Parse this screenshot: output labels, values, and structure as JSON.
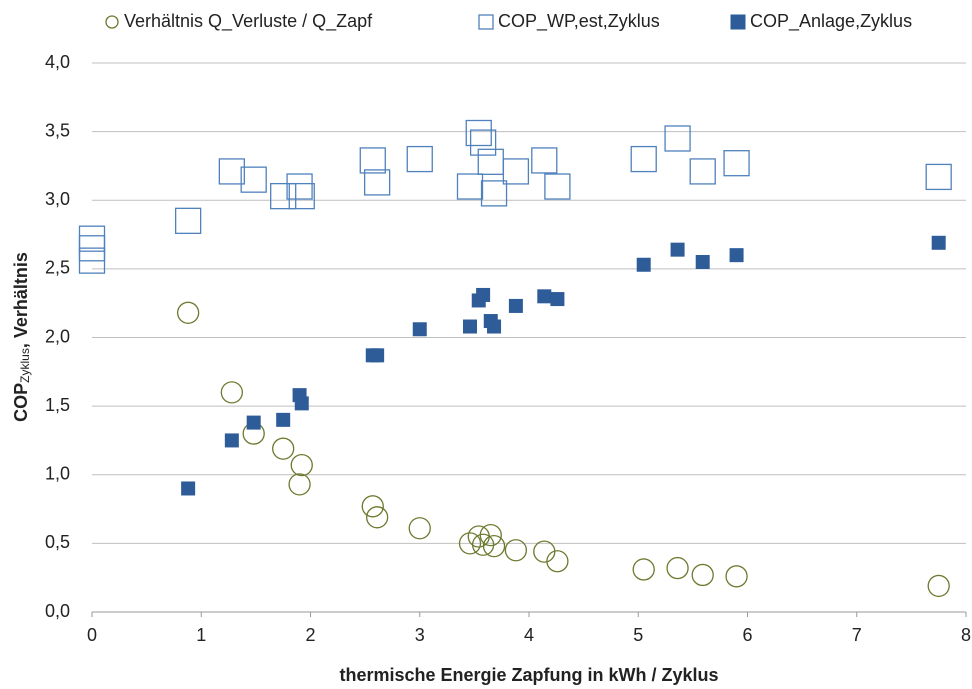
{
  "chart_data": {
    "type": "scatter",
    "xlabel": "thermische Energie Zapfung in kWh / Zyklus",
    "ylabel": [
      "COP",
      "Zyklus",
      ", Verhältnis"
    ],
    "xlim": [
      0,
      8
    ],
    "xticks": [
      0,
      1,
      2,
      3,
      4,
      5,
      6,
      7,
      8
    ],
    "ylim": [
      0,
      4
    ],
    "yticks": [
      {
        "value": 0,
        "label": "0,0"
      },
      {
        "value": 0.5,
        "label": "0,5"
      },
      {
        "value": 1,
        "label": "1,0"
      },
      {
        "value": 1.5,
        "label": "1,5"
      },
      {
        "value": 2,
        "label": "2,0"
      },
      {
        "value": 2.5,
        "label": "2,5"
      },
      {
        "value": 3,
        "label": "3,0"
      },
      {
        "value": 3.5,
        "label": "3,5"
      },
      {
        "value": 4,
        "label": "4,0"
      }
    ],
    "grid": true,
    "legend": "top",
    "series": [
      {
        "name": "Verhältnis Q_Verluste / Q_Zapf",
        "color": "#6b7a2e",
        "marker": "circle",
        "filled": false,
        "x": [
          0.88,
          1.28,
          1.48,
          1.75,
          1.92,
          1.9,
          2.57,
          2.61,
          3.0,
          3.46,
          3.54,
          3.58,
          3.65,
          3.68,
          3.88,
          4.14,
          4.26,
          5.05,
          5.36,
          5.59,
          5.9,
          7.75
        ],
        "values": [
          2.18,
          1.6,
          1.3,
          1.19,
          1.07,
          0.93,
          0.77,
          0.69,
          0.61,
          0.5,
          0.55,
          0.49,
          0.56,
          0.48,
          0.45,
          0.44,
          0.37,
          0.31,
          0.32,
          0.27,
          0.26,
          0.19
        ]
      },
      {
        "name": "COP_WP,est,Zyklus",
        "color": "#4f81bd",
        "marker": "square",
        "filled": false,
        "x": [
          0,
          0,
          0,
          0.88,
          1.28,
          1.48,
          1.75,
          1.9,
          1.92,
          2.57,
          2.61,
          3.0,
          3.46,
          3.54,
          3.58,
          3.65,
          3.68,
          3.88,
          4.14,
          4.26,
          5.05,
          5.36,
          5.59,
          5.9,
          7.75
        ],
        "values": [
          2.56,
          2.65,
          2.72,
          2.85,
          3.21,
          3.15,
          3.03,
          3.1,
          3.03,
          3.29,
          3.13,
          3.3,
          3.1,
          3.49,
          3.42,
          3.28,
          3.05,
          3.21,
          3.29,
          3.1,
          3.3,
          3.45,
          3.21,
          3.27,
          3.17
        ]
      },
      {
        "name": "COP_Anlage,Zyklus",
        "color": "#2e5c99",
        "marker": "square",
        "filled": true,
        "x": [
          0.88,
          1.28,
          1.48,
          1.75,
          1.9,
          1.92,
          2.57,
          2.61,
          3.0,
          3.46,
          3.54,
          3.58,
          3.65,
          3.68,
          3.88,
          4.14,
          4.26,
          5.05,
          5.36,
          5.59,
          5.9,
          7.75
        ],
        "values": [
          0.9,
          1.25,
          1.38,
          1.4,
          1.58,
          1.52,
          1.87,
          1.87,
          2.06,
          2.08,
          2.27,
          2.31,
          2.12,
          2.08,
          2.23,
          2.3,
          2.28,
          2.53,
          2.64,
          2.55,
          2.6,
          2.69
        ]
      }
    ]
  }
}
